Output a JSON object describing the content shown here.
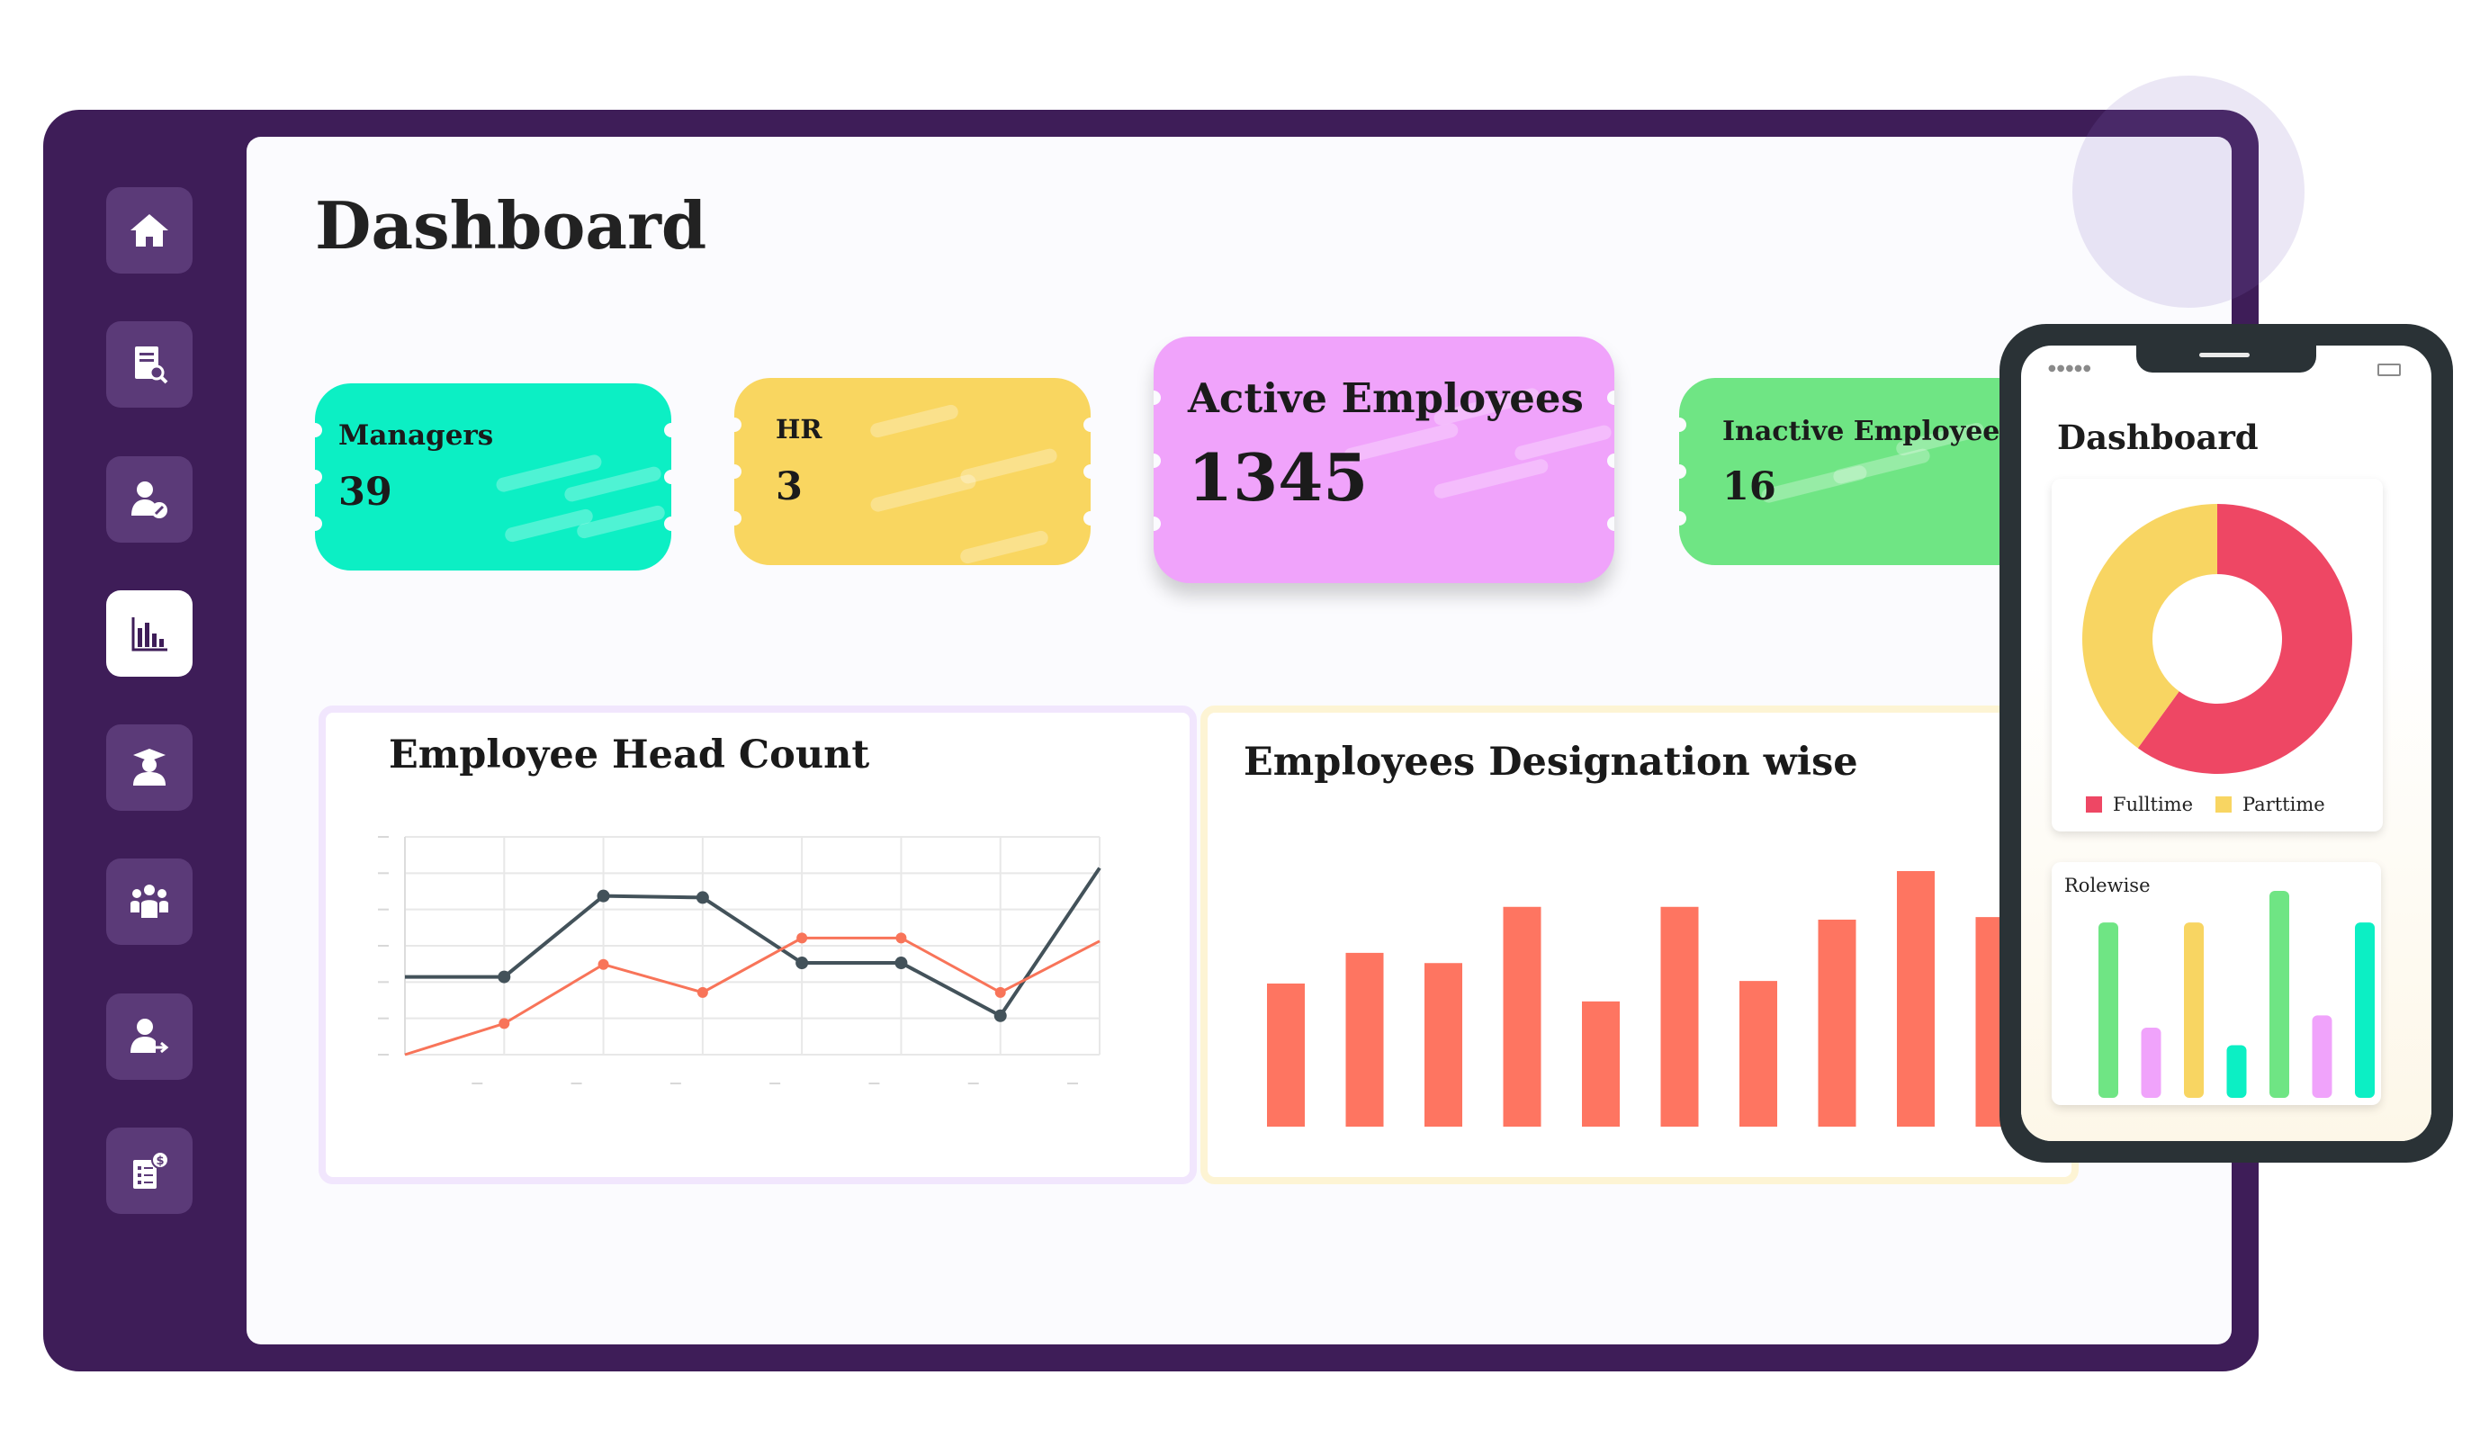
{
  "page": {
    "title": "Dashboard"
  },
  "sidebar": {
    "items": [
      {
        "name": "home",
        "icon": "home-icon"
      },
      {
        "name": "reports",
        "icon": "document-search-icon"
      },
      {
        "name": "user-edit",
        "icon": "user-edit-icon"
      },
      {
        "name": "analytics",
        "icon": "bar-chart-icon",
        "active": true
      },
      {
        "name": "training",
        "icon": "graduate-icon"
      },
      {
        "name": "teams",
        "icon": "group-icon"
      },
      {
        "name": "transfer",
        "icon": "user-transfer-icon"
      },
      {
        "name": "payroll",
        "icon": "payroll-icon"
      }
    ]
  },
  "stats": [
    {
      "label": "Managers",
      "value": "39",
      "color": "#0cefc4"
    },
    {
      "label": "HR",
      "value": "3",
      "color": "#f9d660"
    },
    {
      "label": "Active Employees",
      "value": "1345",
      "color": "#f0a3fb"
    },
    {
      "label": "Inactive Employees",
      "value": "16",
      "color": "#6fe584"
    }
  ],
  "head_count": {
    "title": "Employee Head Count"
  },
  "designation": {
    "title": "Employees Designation wise"
  },
  "mobile": {
    "title": "Dashboard",
    "legend": [
      {
        "label": "Fulltime",
        "color": "#ee4764"
      },
      {
        "label": "Parttime",
        "color": "#f8d562"
      }
    ],
    "rolewise_title": "Rolewise"
  },
  "colors": {
    "frame": "#3e1d58",
    "nav_button": "#5b3a78",
    "line_dark": "#43525a",
    "line_orange": "#f87459",
    "bar": "#fe7561"
  },
  "chart_data": [
    {
      "type": "line",
      "title": "Employee Head Count",
      "x": [
        1,
        2,
        3,
        4,
        5,
        6,
        7,
        8
      ],
      "series": [
        {
          "values": [
            50,
            50,
            102,
            101,
            59,
            59,
            25,
            120
          ],
          "color": "#43525a"
        },
        {
          "values": [
            0,
            20,
            58,
            40,
            75,
            75,
            40,
            73
          ],
          "color": "#f87459"
        }
      ],
      "ylim": [
        0,
        140
      ],
      "grid": true
    },
    {
      "type": "bar",
      "title": "Employees Designation wise",
      "values": [
        56,
        68,
        64,
        86,
        49,
        86,
        57,
        81,
        100,
        82
      ],
      "ylim": [
        0,
        100
      ]
    },
    {
      "type": "pie",
      "title": "Dashboard",
      "slices": [
        {
          "label": "Fulltime",
          "value": 60
        },
        {
          "label": "Parttime",
          "value": 40
        }
      ]
    },
    {
      "type": "bar",
      "title": "Rolewise",
      "values": [
        100,
        40,
        100,
        30,
        118,
        47,
        100
      ],
      "colors": [
        "#6fe584",
        "#f0a3fb",
        "#f8d562",
        "#0cefc4",
        "#6fe584",
        "#f0a3fb",
        "#0cefc4"
      ]
    }
  ]
}
